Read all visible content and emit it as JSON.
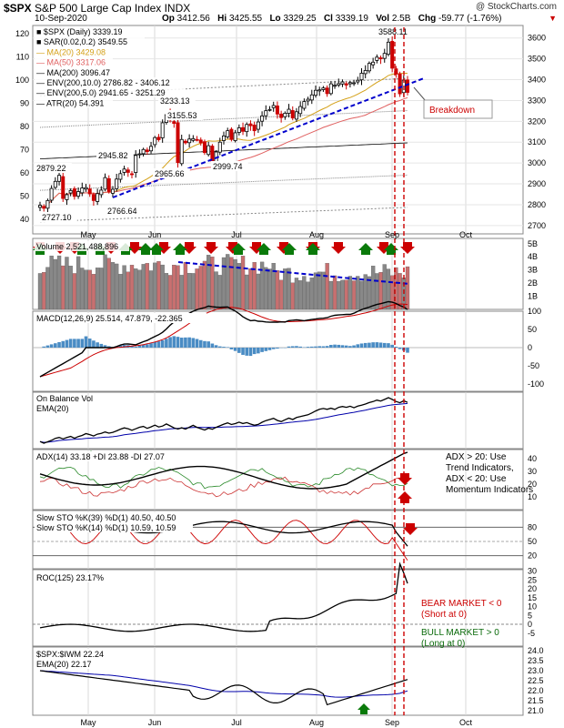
{
  "header": {
    "symbol": "$SPX",
    "name": "S&P 500 Large Cap Index",
    "exchange": "INDX",
    "date": "10-Sep-2020",
    "open_label": "Op",
    "open": "3412.56",
    "high_label": "Hi",
    "high": "3425.55",
    "low_label": "Lo",
    "low": "3329.25",
    "close_label": "Cl",
    "close": "3339.19",
    "vol_label": "Vol",
    "vol": "2.5B",
    "chg_label": "Chg",
    "chg": "-59.77 (-1.76%)",
    "caret": "▼",
    "brand": "@ StockCharts.com"
  },
  "colors": {
    "up": "#000000",
    "down": "#cc0000",
    "trend": "#0000cc",
    "sar": "#999999",
    "ma20": "#d4a017",
    "ma50": "#e06060",
    "ma200": "#000000",
    "env": "#888888",
    "macd_hist": "#4a8cc4",
    "vol_up": "#888888",
    "vol_down": "#c87070"
  },
  "x_axis": {
    "months": [
      "May",
      "Jun",
      "Jul",
      "Aug",
      "Sep",
      "Oct"
    ]
  },
  "chart_data": [
    {
      "type": "candlestick",
      "panel": "price",
      "legend": [
        "■ $SPX (Daily) 3339.19",
        "■ SAR(0.02,0.2) 3549.55",
        "— MA(20) 3429.08",
        "— MA(50) 3317.06",
        "— MA(200) 3096.47",
        "— ENV(200,10.0) 2786.82 - 3406.12",
        "— ENV(200,5.0) 2941.65 - 3251.29",
        "— ATR(20) 54.391"
      ],
      "left_axis": [
        "120",
        "110",
        "100",
        "90",
        "80",
        "70",
        "60",
        "50",
        "40"
      ],
      "right_axis": [
        "3600",
        "3500",
        "3400",
        "3300",
        "3200",
        "3100",
        "3000",
        "2900",
        "2800",
        "2700"
      ],
      "ylim": [
        2660,
        3660
      ],
      "annotations": [
        "3588.11",
        "3233.13",
        "3155.53",
        "2945.82",
        "2879.22",
        "2965.66",
        "2999.74",
        "2766.64",
        "2727.10"
      ],
      "callout": "Breakdown",
      "closes": [
        2797,
        2783,
        2820,
        2878,
        2912,
        2941,
        2830,
        2848,
        2868,
        2840,
        2863,
        2880,
        2882,
        2852,
        2820,
        2853,
        2870,
        2930,
        2863,
        2874,
        2923,
        2949,
        2971,
        2955,
        2948,
        3036,
        3044,
        3065,
        3055,
        3080,
        3122,
        3112,
        3193,
        3232,
        3207,
        3190,
        3002,
        3113,
        3097,
        3115,
        3117,
        3113,
        3097,
        3050,
        3083,
        3009,
        3053,
        3100,
        3130,
        3155,
        3113,
        3145,
        3169,
        3152,
        3185,
        3179,
        3155,
        3197,
        3226,
        3251,
        3257,
        3276,
        3235,
        3218,
        3239,
        3258,
        3216,
        3246,
        3271,
        3295,
        3306,
        3327,
        3349,
        3351,
        3360,
        3333,
        3380,
        3373,
        3381,
        3389,
        3374,
        3386,
        3385,
        3397,
        3431,
        3444,
        3478,
        3484,
        3508,
        3500,
        3526,
        3580,
        3455,
        3427,
        3332,
        3398,
        3339
      ]
    },
    {
      "type": "bar",
      "panel": "volume",
      "legend": "Volume 2,521,488,896",
      "right_axis": [
        "5B",
        "4B",
        "3B",
        "2B",
        "1B"
      ]
    },
    {
      "type": "line",
      "panel": "macd",
      "legend": "MACD(12,26,9) 25.514, 47.879, -22.365",
      "right_axis": [
        "100",
        "50",
        "0",
        "-50",
        "-100"
      ]
    },
    {
      "type": "line",
      "panel": "obv",
      "legend": [
        "On Balance Vol",
        "EMA(20)"
      ]
    },
    {
      "type": "line",
      "panel": "adx",
      "legend": "ADX(14) 33.18 +DI 23.88 -DI 27.07",
      "right_axis": [
        "40",
        "30",
        "20",
        "10"
      ],
      "note": [
        "ADX > 20: Use",
        "Trend Indicators,",
        "ADX < 20: Use",
        "Momentum Indicators"
      ]
    },
    {
      "type": "line",
      "panel": "stochastics",
      "legend": [
        "Slow STO %K(39) %D(1) 40.50, 40.50",
        "Slow STO %K(14) %D(1) 10.59, 10.59"
      ],
      "right_axis": [
        "80",
        "50",
        "20"
      ]
    },
    {
      "type": "line",
      "panel": "roc",
      "legend": "ROC(125) 23.17%",
      "right_axis": [
        "30",
        "25",
        "20",
        "15",
        "10",
        "5",
        "0",
        "-5"
      ],
      "note_bear": [
        "BEAR MARKET < 0",
        "(Short at 0)"
      ],
      "note_bull": [
        "BULL MARKET > 0",
        "(Long at 0)"
      ]
    },
    {
      "type": "line",
      "panel": "ratio",
      "legend": [
        "$SPX:$IWM 22.24",
        "EMA(20) 22.17"
      ],
      "right_axis": [
        "24.0",
        "23.5",
        "23.0",
        "22.5",
        "22.0",
        "21.5",
        "21.0"
      ]
    }
  ]
}
